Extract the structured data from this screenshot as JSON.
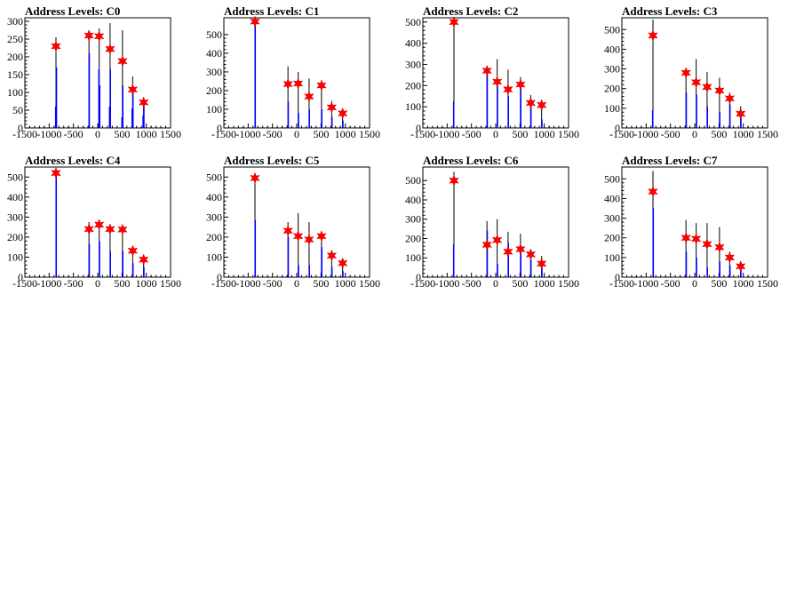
{
  "chart_data": [
    {
      "type": "bar",
      "title": "Address Levels: C0",
      "xlim": [
        -1500,
        1500
      ],
      "ylim": [
        0,
        310
      ],
      "xticks": [
        -1500,
        -1000,
        -500,
        0,
        500,
        1000,
        1500
      ],
      "xtick_labels": [
        "-1500",
        "-1000",
        "-500",
        "0",
        "500",
        "1000",
        "1500"
      ],
      "yticks": [
        0,
        50,
        100,
        150,
        200,
        250,
        300
      ],
      "black_bars": [
        {
          "x": -860,
          "y": 255
        },
        {
          "x": -180,
          "y": 275
        },
        {
          "x": 30,
          "y": 280
        },
        {
          "x": 255,
          "y": 295
        },
        {
          "x": 510,
          "y": 275
        },
        {
          "x": 720,
          "y": 145
        },
        {
          "x": 945,
          "y": 80
        }
      ],
      "blue_bars": [
        {
          "x": -865,
          "y": 60
        },
        {
          "x": -850,
          "y": 170
        },
        {
          "x": -175,
          "y": 210
        },
        {
          "x": 25,
          "y": 165
        },
        {
          "x": 40,
          "y": 120
        },
        {
          "x": 245,
          "y": 60
        },
        {
          "x": 260,
          "y": 165
        },
        {
          "x": 500,
          "y": 30
        },
        {
          "x": 515,
          "y": 120
        },
        {
          "x": 710,
          "y": 55
        },
        {
          "x": 725,
          "y": 100
        },
        {
          "x": 935,
          "y": 35
        },
        {
          "x": 950,
          "y": 70
        }
      ],
      "peaks": [
        {
          "x": -860,
          "y": 230
        },
        {
          "x": -180,
          "y": 260
        },
        {
          "x": 30,
          "y": 258
        },
        {
          "x": 255,
          "y": 222
        },
        {
          "x": 510,
          "y": 188
        },
        {
          "x": 720,
          "y": 108
        },
        {
          "x": 945,
          "y": 72
        }
      ]
    },
    {
      "type": "bar",
      "title": "Address Levels: C1",
      "xlim": [
        -1500,
        1500
      ],
      "ylim": [
        0,
        590
      ],
      "xticks": [
        -1500,
        -1000,
        -500,
        0,
        500,
        1000,
        1500
      ],
      "xtick_labels": [
        "-1500",
        "-1000",
        "-500",
        "0",
        "500",
        "1000",
        "1500"
      ],
      "yticks": [
        0,
        100,
        200,
        300,
        400,
        500
      ],
      "black_bars": [
        {
          "x": -860,
          "y": 585
        },
        {
          "x": -180,
          "y": 330
        },
        {
          "x": 30,
          "y": 300
        },
        {
          "x": 255,
          "y": 265
        },
        {
          "x": 510,
          "y": 245
        },
        {
          "x": 720,
          "y": 145
        },
        {
          "x": 945,
          "y": 100
        }
      ],
      "blue_bars": [
        {
          "x": -855,
          "y": 570
        },
        {
          "x": -175,
          "y": 140
        },
        {
          "x": 35,
          "y": 80
        },
        {
          "x": 260,
          "y": 100
        },
        {
          "x": 515,
          "y": 100
        },
        {
          "x": 725,
          "y": 60
        },
        {
          "x": 950,
          "y": 40
        }
      ],
      "peaks": [
        {
          "x": -860,
          "y": 570
        },
        {
          "x": -180,
          "y": 235
        },
        {
          "x": 30,
          "y": 238
        },
        {
          "x": 255,
          "y": 168
        },
        {
          "x": 510,
          "y": 228
        },
        {
          "x": 720,
          "y": 110
        },
        {
          "x": 945,
          "y": 78
        }
      ]
    },
    {
      "type": "bar",
      "title": "Address Levels: C2",
      "xlim": [
        -1500,
        1500
      ],
      "ylim": [
        0,
        520
      ],
      "xticks": [
        -1500,
        -1000,
        -500,
        0,
        500,
        1000,
        1500
      ],
      "xtick_labels": [
        "-1500",
        "-1000",
        "-500",
        "0",
        "500",
        "1000",
        "1500"
      ],
      "yticks": [
        0,
        100,
        200,
        300,
        400,
        500
      ],
      "black_bars": [
        {
          "x": -860,
          "y": 515
        },
        {
          "x": -180,
          "y": 290
        },
        {
          "x": 30,
          "y": 325
        },
        {
          "x": 255,
          "y": 275
        },
        {
          "x": 510,
          "y": 240
        },
        {
          "x": 720,
          "y": 155
        },
        {
          "x": 945,
          "y": 110
        }
      ],
      "blue_bars": [
        {
          "x": -865,
          "y": 125
        },
        {
          "x": -175,
          "y": 250
        },
        {
          "x": 35,
          "y": 200
        },
        {
          "x": 260,
          "y": 150
        },
        {
          "x": 515,
          "y": 200
        },
        {
          "x": 725,
          "y": 110
        },
        {
          "x": 950,
          "y": 40
        }
      ],
      "peaks": [
        {
          "x": -860,
          "y": 500
        },
        {
          "x": -180,
          "y": 270
        },
        {
          "x": 30,
          "y": 218
        },
        {
          "x": 255,
          "y": 182
        },
        {
          "x": 510,
          "y": 205
        },
        {
          "x": 720,
          "y": 118
        },
        {
          "x": 945,
          "y": 108
        }
      ]
    },
    {
      "type": "bar",
      "title": "Address Levels: C3",
      "xlim": [
        -1500,
        1500
      ],
      "ylim": [
        0,
        560
      ],
      "xticks": [
        -1500,
        -1000,
        -500,
        0,
        500,
        1000,
        1500
      ],
      "xtick_labels": [
        "-1500",
        "-1000",
        "-500",
        "0",
        "500",
        "1000",
        "1500"
      ],
      "yticks": [
        0,
        100,
        200,
        300,
        400,
        500
      ],
      "black_bars": [
        {
          "x": -860,
          "y": 550
        },
        {
          "x": -180,
          "y": 300
        },
        {
          "x": 30,
          "y": 350
        },
        {
          "x": 255,
          "y": 285
        },
        {
          "x": 510,
          "y": 255
        },
        {
          "x": 720,
          "y": 180
        },
        {
          "x": 945,
          "y": 110
        }
      ],
      "blue_bars": [
        {
          "x": -865,
          "y": 90
        },
        {
          "x": -175,
          "y": 180
        },
        {
          "x": 35,
          "y": 170
        },
        {
          "x": 260,
          "y": 110
        },
        {
          "x": 515,
          "y": 80
        },
        {
          "x": 725,
          "y": 120
        },
        {
          "x": 950,
          "y": 90
        }
      ],
      "peaks": [
        {
          "x": -860,
          "y": 470
        },
        {
          "x": -180,
          "y": 280
        },
        {
          "x": 30,
          "y": 232
        },
        {
          "x": 255,
          "y": 208
        },
        {
          "x": 510,
          "y": 190
        },
        {
          "x": 720,
          "y": 150
        },
        {
          "x": 945,
          "y": 72
        }
      ]
    },
    {
      "type": "bar",
      "title": "Address Levels: C4",
      "xlim": [
        -1500,
        1500
      ],
      "ylim": [
        0,
        550
      ],
      "xticks": [
        -1500,
        -1000,
        -500,
        0,
        500,
        1000,
        1500
      ],
      "xtick_labels": [
        "-1500",
        "-1000",
        "-500",
        "0",
        "500",
        "1000",
        "1500"
      ],
      "yticks": [
        0,
        100,
        200,
        300,
        400,
        500
      ],
      "black_bars": [
        {
          "x": -860,
          "y": 545
        },
        {
          "x": -180,
          "y": 275
        },
        {
          "x": 30,
          "y": 280
        },
        {
          "x": 255,
          "y": 255
        },
        {
          "x": 510,
          "y": 250
        },
        {
          "x": 720,
          "y": 150
        },
        {
          "x": 945,
          "y": 100
        }
      ],
      "blue_bars": [
        {
          "x": -855,
          "y": 530
        },
        {
          "x": -175,
          "y": 165
        },
        {
          "x": 35,
          "y": 180
        },
        {
          "x": 260,
          "y": 130
        },
        {
          "x": 515,
          "y": 130
        },
        {
          "x": 725,
          "y": 70
        },
        {
          "x": 950,
          "y": 50
        }
      ],
      "peaks": [
        {
          "x": -860,
          "y": 520
        },
        {
          "x": -180,
          "y": 240
        },
        {
          "x": 30,
          "y": 262
        },
        {
          "x": 255,
          "y": 240
        },
        {
          "x": 510,
          "y": 238
        },
        {
          "x": 720,
          "y": 132
        },
        {
          "x": 945,
          "y": 88
        }
      ]
    },
    {
      "type": "bar",
      "title": "Address Levels: C5",
      "xlim": [
        -1500,
        1500
      ],
      "ylim": [
        0,
        550
      ],
      "xticks": [
        -1500,
        -1000,
        -500,
        0,
        500,
        1000,
        1500
      ],
      "xtick_labels": [
        "-1500",
        "-1000",
        "-500",
        "0",
        "500",
        "1000",
        "1500"
      ],
      "yticks": [
        0,
        100,
        200,
        300,
        400,
        500
      ],
      "black_bars": [
        {
          "x": -860,
          "y": 520
        },
        {
          "x": -180,
          "y": 275
        },
        {
          "x": 30,
          "y": 320
        },
        {
          "x": 255,
          "y": 275
        },
        {
          "x": 510,
          "y": 225
        },
        {
          "x": 720,
          "y": 135
        },
        {
          "x": 945,
          "y": 90
        }
      ],
      "blue_bars": [
        {
          "x": -855,
          "y": 285
        },
        {
          "x": -175,
          "y": 200
        },
        {
          "x": 35,
          "y": 60
        },
        {
          "x": 260,
          "y": 60
        },
        {
          "x": 515,
          "y": 150
        },
        {
          "x": 725,
          "y": 50
        },
        {
          "x": 950,
          "y": 30
        }
      ],
      "peaks": [
        {
          "x": -860,
          "y": 495
        },
        {
          "x": -180,
          "y": 232
        },
        {
          "x": 30,
          "y": 205
        },
        {
          "x": 255,
          "y": 188
        },
        {
          "x": 510,
          "y": 205
        },
        {
          "x": 720,
          "y": 108
        },
        {
          "x": 945,
          "y": 70
        }
      ]
    },
    {
      "type": "bar",
      "title": "Address Levels: C6",
      "xlim": [
        -1500,
        1500
      ],
      "ylim": [
        0,
        570
      ],
      "xticks": [
        -1500,
        -1000,
        -500,
        0,
        500,
        1000,
        1500
      ],
      "xtick_labels": [
        "-1500",
        "-1000",
        "-500",
        "0",
        "500",
        "1000",
        "1500"
      ],
      "yticks": [
        0,
        100,
        200,
        300,
        400,
        500
      ],
      "black_bars": [
        {
          "x": -860,
          "y": 545
        },
        {
          "x": -180,
          "y": 290
        },
        {
          "x": 30,
          "y": 300
        },
        {
          "x": 255,
          "y": 235
        },
        {
          "x": 510,
          "y": 225
        },
        {
          "x": 720,
          "y": 145
        },
        {
          "x": 945,
          "y": 110
        }
      ],
      "blue_bars": [
        {
          "x": -865,
          "y": 170
        },
        {
          "x": -175,
          "y": 240
        },
        {
          "x": 35,
          "y": 70
        },
        {
          "x": 260,
          "y": 180
        },
        {
          "x": 515,
          "y": 160
        },
        {
          "x": 725,
          "y": 90
        },
        {
          "x": 950,
          "y": 50
        }
      ],
      "peaks": [
        {
          "x": -860,
          "y": 500
        },
        {
          "x": -180,
          "y": 168
        },
        {
          "x": 30,
          "y": 192
        },
        {
          "x": 255,
          "y": 132
        },
        {
          "x": 510,
          "y": 145
        },
        {
          "x": 720,
          "y": 118
        },
        {
          "x": 945,
          "y": 70
        }
      ]
    },
    {
      "type": "bar",
      "title": "Address Levels: C7",
      "xlim": [
        -1500,
        1500
      ],
      "ylim": [
        0,
        560
      ],
      "xticks": [
        -1500,
        -1000,
        -500,
        0,
        500,
        1000,
        1500
      ],
      "xtick_labels": [
        "-1500",
        "-1000",
        "-500",
        "0",
        "500",
        "1000",
        "1500"
      ],
      "yticks": [
        0,
        100,
        200,
        300,
        400,
        500
      ],
      "black_bars": [
        {
          "x": -860,
          "y": 540
        },
        {
          "x": -180,
          "y": 290
        },
        {
          "x": 30,
          "y": 275
        },
        {
          "x": 255,
          "y": 275
        },
        {
          "x": 510,
          "y": 255
        },
        {
          "x": 720,
          "y": 130
        },
        {
          "x": 945,
          "y": 80
        }
      ],
      "blue_bars": [
        {
          "x": -855,
          "y": 350
        },
        {
          "x": -175,
          "y": 130
        },
        {
          "x": 35,
          "y": 100
        },
        {
          "x": 260,
          "y": 50
        },
        {
          "x": 515,
          "y": 80
        },
        {
          "x": 725,
          "y": 60
        },
        {
          "x": 950,
          "y": 40
        }
      ],
      "peaks": [
        {
          "x": -860,
          "y": 435
        },
        {
          "x": -180,
          "y": 200
        },
        {
          "x": 30,
          "y": 195
        },
        {
          "x": 255,
          "y": 168
        },
        {
          "x": 510,
          "y": 152
        },
        {
          "x": 720,
          "y": 100
        },
        {
          "x": 945,
          "y": 55
        }
      ]
    }
  ]
}
